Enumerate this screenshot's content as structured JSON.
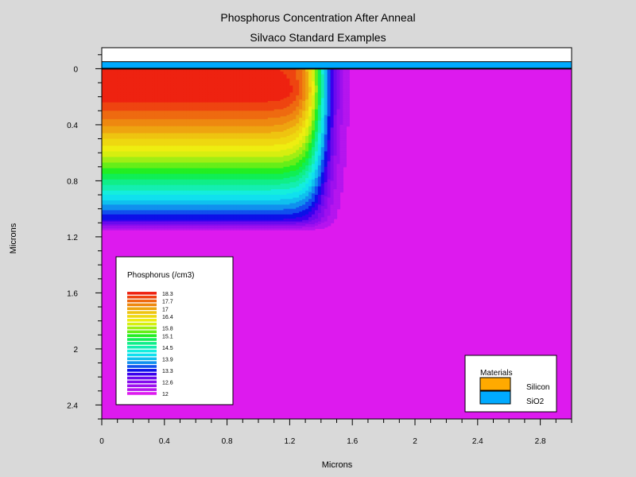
{
  "chart_data": {
    "type": "heatmap",
    "title": "Phosphorus Concentration After Anneal",
    "subtitle": "Silvaco Standard Examples",
    "xlabel": "Microns",
    "ylabel": "Microns",
    "xlim": [
      0,
      3.0
    ],
    "ylim": [
      -0.15,
      2.5
    ],
    "y_inverted": true,
    "x_ticks": [
      0,
      0.4,
      0.8,
      1.2,
      1.6,
      2.0,
      2.4,
      2.8
    ],
    "x_tick_labels": [
      "0",
      "0.4",
      "0.8",
      "1.2",
      "1.6",
      "2",
      "2.4",
      "2.8"
    ],
    "y_ticks": [
      0,
      0.4,
      0.8,
      1.2,
      1.6,
      2.0,
      2.4
    ],
    "y_tick_labels": [
      "0",
      "0.4",
      "0.8",
      "1.2",
      "1.6",
      "2",
      "2.4"
    ],
    "regions": [
      {
        "material": "SiO2",
        "y_top": -0.05,
        "y_bottom": 0.0,
        "x_left": 0,
        "x_right": 3.0,
        "color": "#00aaff"
      },
      {
        "material": "Silicon",
        "y_top": 0.0,
        "y_bottom": 2.5,
        "x_left": 0,
        "x_right": 3.0
      }
    ],
    "profile": {
      "peak_depth": 0.15,
      "peak_value": 18.6,
      "background": 12.0,
      "lateral_edge_x": 1.4,
      "junction_depth": 1.08,
      "contour_min": 12.0,
      "contour_max": 18.6
    },
    "colorbar": {
      "title": "Phosphorus (/cm3)",
      "colors": [
        "#dd1aee",
        "#b515ee",
        "#9e10ee",
        "#840cee",
        "#6a0aee",
        "#3a00ee",
        "#0d10e8",
        "#1050ee",
        "#1090ee",
        "#10c0ee",
        "#10e0ee",
        "#14eedd",
        "#14eeb0",
        "#10ee88",
        "#10ee55",
        "#22ee22",
        "#66ee18",
        "#a0ee14",
        "#d6ee10",
        "#eeee10",
        "#eed810",
        "#eec410",
        "#eea410",
        "#ee8810",
        "#ee6a10",
        "#ee4410",
        "#ee2210"
      ],
      "labels": [
        {
          "index": 1,
          "text": "12"
        },
        {
          "index": 4,
          "text": "12.6"
        },
        {
          "index": 7,
          "text": "13.3"
        },
        {
          "index": 10,
          "text": "13.9"
        },
        {
          "index": 13,
          "text": "14.5"
        },
        {
          "index": 16,
          "text": "15.1"
        },
        {
          "index": 18,
          "text": "15.8"
        },
        {
          "index": 21,
          "text": "16.4"
        },
        {
          "index": 23,
          "text": "17"
        },
        {
          "index": 25,
          "text": "17.7"
        },
        {
          "index": 27,
          "text": "18.3"
        }
      ]
    },
    "legend": {
      "title": "Materials",
      "position": "bottom-right",
      "items": [
        {
          "name": "Silicon",
          "color": "#ffaa00"
        },
        {
          "name": "SiO2",
          "color": "#00aaff"
        }
      ]
    }
  }
}
